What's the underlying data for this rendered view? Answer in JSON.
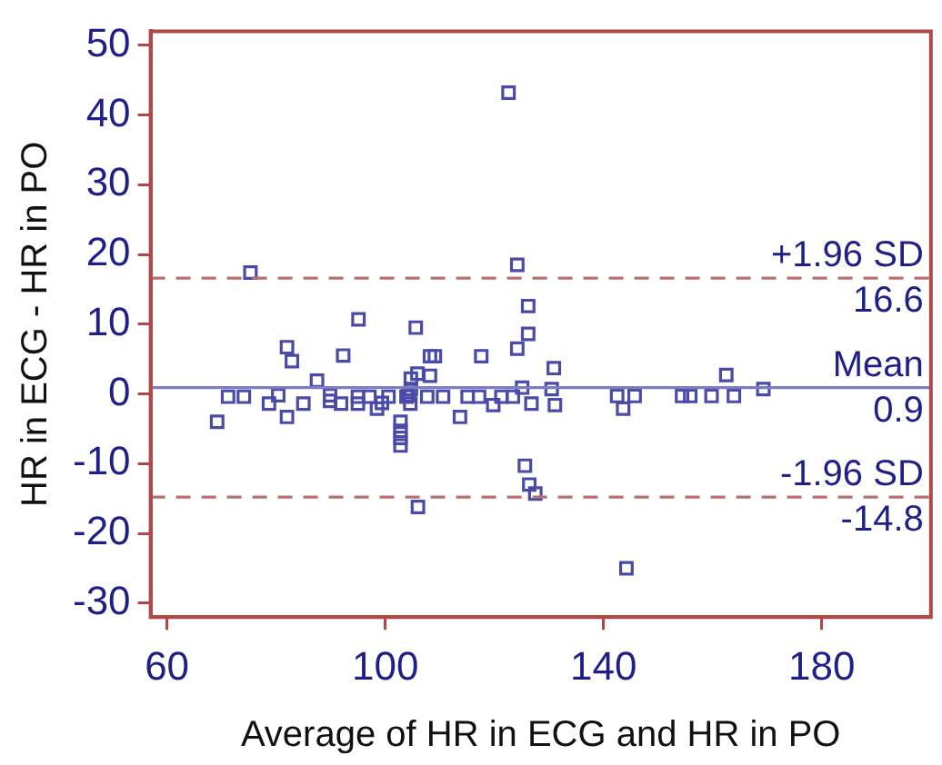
{
  "chart_data": {
    "type": "scatter",
    "xlabel": "Average of HR in ECG and HR in PO",
    "ylabel": "HR in ECG - HR in PO",
    "xlim": [
      57,
      200
    ],
    "xticks": [
      60,
      100,
      140,
      180
    ],
    "ylim": [
      -32,
      52
    ],
    "yticks": [
      -30,
      -20,
      -10,
      0,
      10,
      20,
      30,
      40,
      50
    ],
    "grid": false,
    "legend": false,
    "marker": "square",
    "series": [
      {
        "color": "#4a4aa8",
        "x": [
          122.6,
          75.3,
          124.2,
          126.2,
          95.1,
          105.6,
          126.2,
          82.0,
          82.9,
          92.3,
          108.2,
          109.1,
          117.6,
          124.2,
          130.9,
          87.5,
          104.7,
          105.9,
          108.2,
          104.7,
          104.2,
          71.2,
          74.1,
          80.4,
          78.7,
          85.0,
          82.0,
          69.2,
          89.9,
          89.9,
          91.9,
          95.0,
          95.0,
          97.1,
          98.5,
          99.4,
          100.6,
          103.9,
          104.6,
          107.7,
          110.6,
          102.8,
          102.8,
          102.8,
          102.8,
          113.7,
          115.1,
          117.2,
          119.8,
          121.3,
          123.4,
          125.1,
          126.8,
          130.5,
          131.1,
          125.6,
          126.4,
          127.5,
          106.0,
          142.5,
          145.7,
          143.6,
          154.4,
          155.9,
          159.8,
          163.9,
          162.5,
          169.3,
          144.2
        ],
        "values": [
          43.2,
          17.4,
          18.5,
          12.6,
          10.7,
          9.5,
          8.6,
          6.7,
          4.7,
          5.5,
          5.4,
          5.4,
          5.4,
          6.5,
          3.7,
          1.9,
          2.2,
          2.9,
          2.6,
          0.7,
          -0.2,
          -0.4,
          -0.4,
          -0.2,
          -1.4,
          -1.4,
          -3.3,
          -4.0,
          -0.2,
          -1.0,
          -1.4,
          -0.4,
          -1.4,
          -0.4,
          -2.1,
          -1.3,
          -0.4,
          -0.4,
          -1.4,
          -0.4,
          -0.4,
          -4.0,
          -5.3,
          -6.3,
          -7.4,
          -3.3,
          -0.4,
          -0.4,
          -1.6,
          -0.4,
          -0.4,
          0.9,
          -1.4,
          0.7,
          -1.6,
          -10.3,
          -13.0,
          -14.3,
          -16.2,
          -0.3,
          -0.3,
          -2.1,
          -0.3,
          -0.3,
          -0.3,
          -0.3,
          2.7,
          0.7,
          -25.0
        ]
      }
    ],
    "ref_lines": [
      {
        "axis": "y",
        "value": 16.6,
        "label": "+1.96 SD",
        "color": "#b87070",
        "line_style": "dashed"
      },
      {
        "axis": "y",
        "value": 0.9,
        "label": "Mean",
        "color": "#7c7cc4",
        "line_style": "solid"
      },
      {
        "axis": "y",
        "value": -14.8,
        "label": "-1.96 SD",
        "color": "#b87070",
        "line_style": "dashed"
      }
    ],
    "annotations": [
      {
        "text": "16.6",
        "y": 16.6
      },
      {
        "text": "0.9",
        "y": 0.9
      },
      {
        "text": "-14.8",
        "y": -14.8
      }
    ]
  }
}
